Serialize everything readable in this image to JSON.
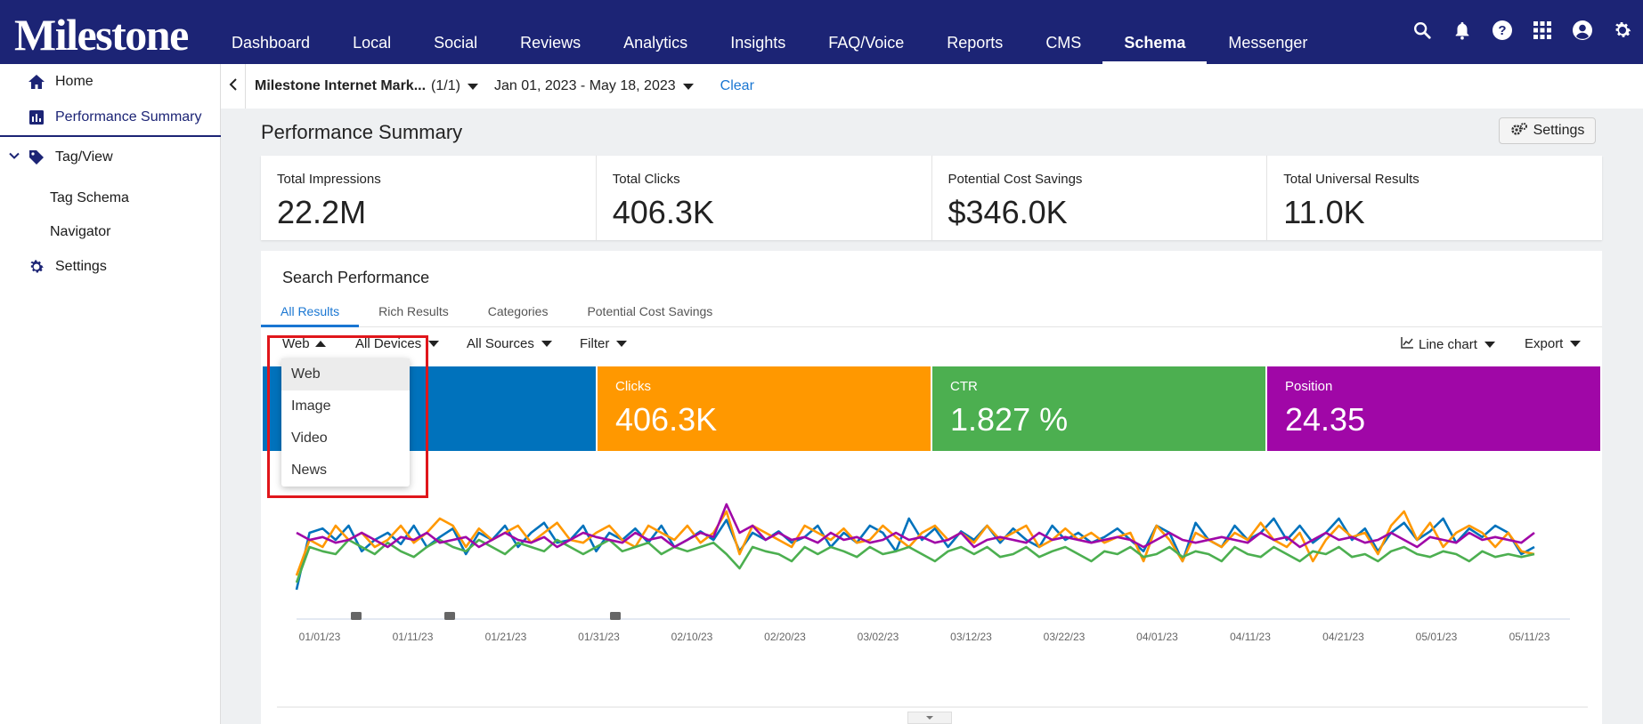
{
  "brand": "Milestone",
  "nav": [
    "Dashboard",
    "Local",
    "Social",
    "Reviews",
    "Analytics",
    "Insights",
    "FAQ/Voice",
    "Reports",
    "CMS",
    "Schema",
    "Messenger"
  ],
  "nav_active": "Schema",
  "top_icons": [
    "search-icon",
    "bell-icon",
    "help-icon",
    "apps-grid-icon",
    "account-icon",
    "gear-icon"
  ],
  "sidebar": {
    "home": "Home",
    "performance_summary": "Performance Summary",
    "tag_view": "Tag/View",
    "tag_schema": "Tag Schema",
    "navigator": "Navigator",
    "settings": "Settings"
  },
  "filterbar": {
    "account": "Milestone Internet Mark...",
    "account_count": "(1/1)",
    "date_range": "Jan 01, 2023 - May 18, 2023",
    "clear": "Clear"
  },
  "page": {
    "title": "Performance Summary",
    "settings_label": "Settings"
  },
  "kpis": [
    {
      "label": "Total Impressions",
      "value": "22.2M"
    },
    {
      "label": "Total Clicks",
      "value": "406.3K"
    },
    {
      "label": "Potential Cost Savings",
      "value": "$346.0K"
    },
    {
      "label": "Total Universal Results",
      "value": "11.0K"
    }
  ],
  "search_performance": {
    "title": "Search Performance",
    "tabs": [
      "All Results",
      "Rich Results",
      "Categories",
      "Potential Cost Savings"
    ],
    "active_tab": "All Results",
    "filters": {
      "type": "Web",
      "devices": "All Devices",
      "sources": "All Sources",
      "filter": "Filter",
      "chart_type": "Line chart",
      "export": "Export"
    },
    "dropdown_options": [
      "Web",
      "Image",
      "Video",
      "News"
    ],
    "dropdown_selected": "Web",
    "metrics": [
      {
        "label": "",
        "value": "",
        "color": "#0072bc"
      },
      {
        "label": "Clicks",
        "value": "406.3K",
        "color": "#ff9800"
      },
      {
        "label": "CTR",
        "value": "1.827 %",
        "color": "#4caf50"
      },
      {
        "label": "Position",
        "value": "24.35",
        "color": "#a007a7"
      }
    ]
  },
  "chart_data": {
    "type": "line",
    "x_ticks": [
      "01/01/23",
      "01/11/23",
      "01/21/23",
      "01/31/23",
      "02/10/23",
      "02/20/23",
      "03/02/23",
      "03/12/23",
      "03/22/23",
      "04/01/23",
      "04/11/23",
      "04/21/23",
      "05/01/23",
      "05/11/23"
    ],
    "colors": {
      "impressions": "#0072bc",
      "clicks": "#ff9800",
      "ctr": "#4caf50",
      "position": "#a007a7"
    },
    "series": [
      {
        "values": [
          0.15,
          0.55,
          0.58,
          0.5,
          0.6,
          0.42,
          0.5,
          0.55,
          0.47,
          0.6,
          0.45,
          0.52,
          0.58,
          0.4,
          0.55,
          0.5,
          0.6,
          0.45,
          0.55,
          0.62,
          0.48,
          0.5,
          0.6,
          0.42,
          0.55,
          0.5,
          0.58,
          0.48,
          0.6,
          0.45,
          0.5,
          0.56,
          0.5,
          0.64,
          0.42,
          0.55,
          0.5,
          0.56,
          0.48,
          0.52,
          0.6,
          0.45,
          0.55,
          0.48,
          0.6,
          0.55,
          0.42,
          0.65,
          0.5,
          0.58,
          0.45,
          0.56,
          0.5,
          0.6,
          0.48,
          0.58,
          0.5,
          0.45,
          0.6,
          0.5,
          0.55,
          0.48,
          0.52,
          0.58,
          0.5,
          0.42,
          0.6,
          0.55,
          0.35,
          0.62,
          0.5,
          0.45,
          0.6,
          0.5,
          0.55,
          0.65,
          0.5,
          0.6,
          0.48,
          0.55,
          0.65,
          0.5,
          0.58,
          0.42,
          0.55,
          0.62,
          0.5,
          0.56,
          0.65,
          0.48,
          0.58,
          0.52,
          0.6,
          0.55,
          0.4,
          0.45
        ]
      },
      {
        "values": [
          0.25,
          0.5,
          0.45,
          0.6,
          0.5,
          0.55,
          0.45,
          0.5,
          0.6,
          0.48,
          0.55,
          0.65,
          0.6,
          0.45,
          0.58,
          0.5,
          0.55,
          0.6,
          0.48,
          0.55,
          0.62,
          0.5,
          0.48,
          0.55,
          0.6,
          0.5,
          0.45,
          0.6,
          0.55,
          0.5,
          0.6,
          0.48,
          0.55,
          0.7,
          0.4,
          0.6,
          0.55,
          0.5,
          0.45,
          0.6,
          0.55,
          0.5,
          0.58,
          0.48,
          0.5,
          0.6,
          0.52,
          0.45,
          0.55,
          0.6,
          0.5,
          0.55,
          0.48,
          0.6,
          0.5,
          0.55,
          0.6,
          0.45,
          0.5,
          0.58,
          0.5,
          0.55,
          0.48,
          0.52,
          0.55,
          0.35,
          0.6,
          0.5,
          0.35,
          0.55,
          0.5,
          0.45,
          0.55,
          0.5,
          0.62,
          0.5,
          0.45,
          0.55,
          0.35,
          0.5,
          0.6,
          0.52,
          0.55,
          0.4,
          0.6,
          0.7,
          0.5,
          0.62,
          0.45,
          0.55,
          0.6,
          0.55,
          0.45,
          0.55,
          0.42,
          0.4
        ]
      },
      {
        "values": [
          0.2,
          0.45,
          0.42,
          0.4,
          0.5,
          0.45,
          0.4,
          0.48,
          0.42,
          0.38,
          0.45,
          0.5,
          0.45,
          0.42,
          0.5,
          0.45,
          0.4,
          0.48,
          0.45,
          0.42,
          0.5,
          0.45,
          0.4,
          0.45,
          0.5,
          0.42,
          0.45,
          0.48,
          0.4,
          0.45,
          0.42,
          0.45,
          0.48,
          0.4,
          0.3,
          0.45,
          0.42,
          0.4,
          0.35,
          0.45,
          0.4,
          0.45,
          0.42,
          0.38,
          0.45,
          0.4,
          0.42,
          0.45,
          0.4,
          0.35,
          0.42,
          0.45,
          0.4,
          0.45,
          0.38,
          0.4,
          0.45,
          0.38,
          0.42,
          0.45,
          0.4,
          0.35,
          0.42,
          0.4,
          0.45,
          0.38,
          0.4,
          0.45,
          0.38,
          0.42,
          0.4,
          0.35,
          0.45,
          0.4,
          0.38,
          0.45,
          0.4,
          0.35,
          0.42,
          0.4,
          0.45,
          0.38,
          0.4,
          0.35,
          0.42,
          0.45,
          0.4,
          0.38,
          0.42,
          0.4,
          0.35,
          0.42,
          0.38,
          0.4,
          0.38,
          0.4
        ]
      },
      {
        "values": [
          0.55,
          0.5,
          0.52,
          0.48,
          0.5,
          0.55,
          0.5,
          0.45,
          0.52,
          0.5,
          0.55,
          0.48,
          0.5,
          0.52,
          0.45,
          0.5,
          0.55,
          0.5,
          0.48,
          0.52,
          0.45,
          0.5,
          0.55,
          0.52,
          0.5,
          0.48,
          0.55,
          0.5,
          0.52,
          0.45,
          0.5,
          0.55,
          0.52,
          0.75,
          0.55,
          0.6,
          0.5,
          0.55,
          0.5,
          0.52,
          0.48,
          0.55,
          0.5,
          0.52,
          0.48,
          0.5,
          0.55,
          0.5,
          0.52,
          0.48,
          0.5,
          0.55,
          0.45,
          0.5,
          0.52,
          0.5,
          0.48,
          0.55,
          0.5,
          0.52,
          0.5,
          0.48,
          0.5,
          0.52,
          0.5,
          0.45,
          0.5,
          0.55,
          0.5,
          0.48,
          0.5,
          0.52,
          0.5,
          0.48,
          0.55,
          0.5,
          0.52,
          0.45,
          0.5,
          0.55,
          0.5,
          0.52,
          0.48,
          0.5,
          0.55,
          0.5,
          0.45,
          0.52,
          0.5,
          0.48,
          0.55,
          0.5,
          0.52,
          0.5,
          0.48,
          0.55
        ]
      }
    ]
  }
}
